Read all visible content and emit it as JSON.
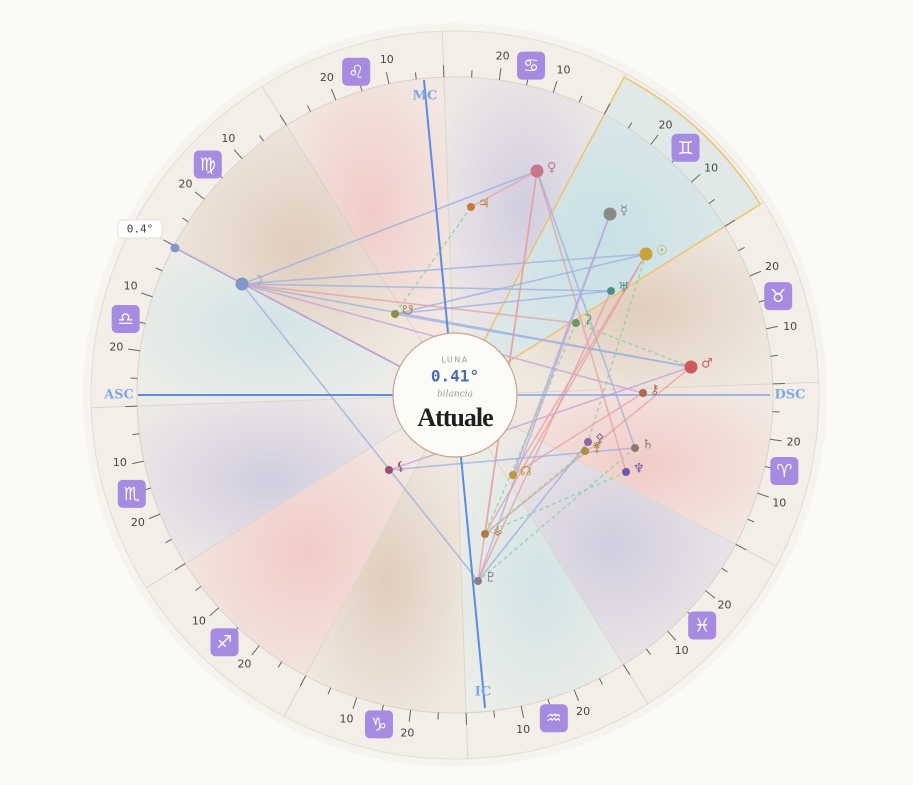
{
  "angles": {
    "mc": "MC",
    "asc": "ASC",
    "dsc": "DSC",
    "ic": "IC"
  },
  "signs": [
    {
      "symbol": "♌",
      "labels": [
        "10",
        "20"
      ]
    },
    {
      "symbol": "♋",
      "labels": [
        "10",
        "20"
      ]
    },
    {
      "symbol": "♊",
      "labels": [
        "10",
        "20"
      ]
    },
    {
      "symbol": "♉",
      "labels": [
        "10",
        "20"
      ]
    },
    {
      "symbol": "♈",
      "labels": [
        "10",
        "20"
      ]
    },
    {
      "symbol": "♓",
      "labels": [
        "10",
        "20"
      ]
    },
    {
      "symbol": "♒",
      "labels": [
        "10",
        "20"
      ]
    },
    {
      "symbol": "♑",
      "labels": [
        "10",
        "20"
      ]
    },
    {
      "symbol": "♐",
      "labels": [
        "10",
        "20"
      ]
    },
    {
      "symbol": "♏",
      "labels": [
        "10",
        "20"
      ]
    },
    {
      "symbol": "♎",
      "labels": [
        "10",
        "20"
      ]
    },
    {
      "symbol": "♍",
      "labels": [
        "10",
        "20"
      ]
    }
  ],
  "planets": [
    "♀",
    "☿",
    "☉",
    "♅",
    "⚳",
    "♂",
    "⚷",
    "♄",
    "♆",
    "⚴",
    "⚵",
    "☊",
    "⚸",
    "⚶",
    "♇",
    "☋",
    "♃",
    "☽"
  ],
  "tooltip": "0.4°",
  "center": {
    "caption": "LUNA",
    "degree": "0.41°",
    "sign": "bilancia",
    "title": "Attuale"
  }
}
